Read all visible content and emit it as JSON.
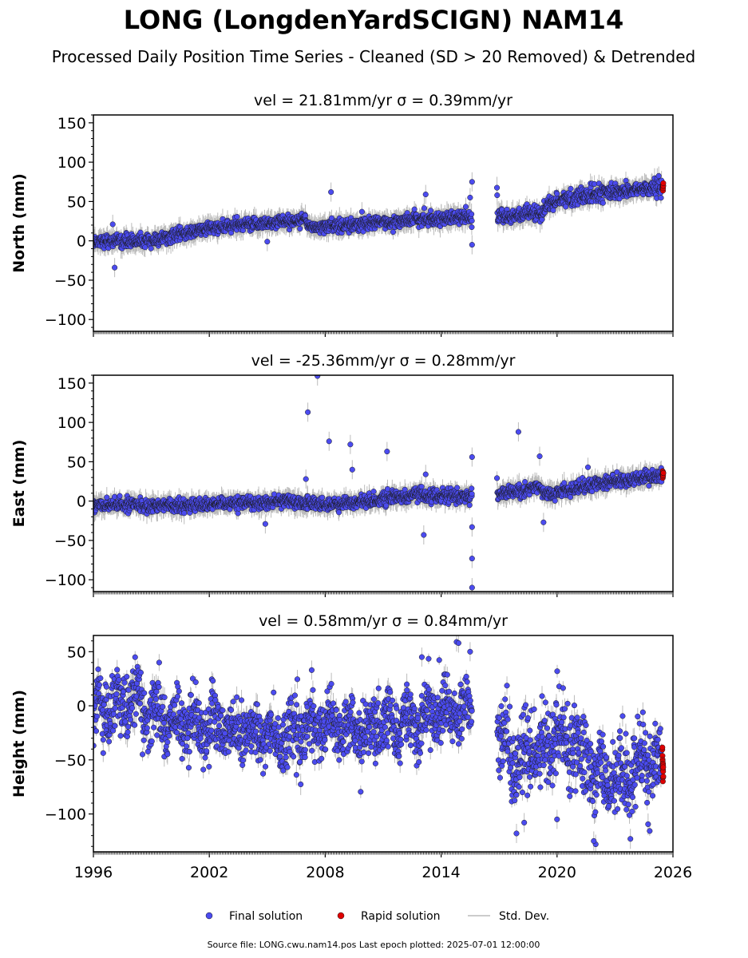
{
  "title": "LONG (LongdenYardSCIGN) NAM14",
  "subtitle": "Processed Daily Position Time Series - Cleaned (SD > 20 Removed) & Detrended",
  "footer": "Source file: LONG.cwu.nam14.pos  Last epoch plotted: 2025-07-01 12:00:00",
  "colors": {
    "final": "#4b4bef",
    "rapid": "#e00000",
    "stddev": "#bbbbbb",
    "marker_edge": "#1a1a1a"
  },
  "legend": [
    {
      "label": "Final solution",
      "marker": "circle",
      "color": "#4b4bef"
    },
    {
      "label": "Rapid solution",
      "marker": "circle",
      "color": "#e00000"
    },
    {
      "label": "Std. Dev.",
      "marker": "line",
      "color": "#bbbbbb"
    }
  ],
  "chart_data": [
    {
      "type": "scatter",
      "title": "vel = 21.81mm/yr   σ = 0.39mm/yr",
      "ylabel": "North (mm)",
      "xlim": [
        1996,
        2026
      ],
      "ylim": [
        -115,
        160
      ],
      "yticks": [
        -100,
        -50,
        0,
        50,
        100,
        150
      ],
      "xticks": [
        1996,
        2002,
        2008,
        2014,
        2020,
        2026
      ],
      "xtick_labels_visible": false,
      "series": [
        {
          "name": "Final solution",
          "segments": [
            {
              "x": [
                1996.0,
                1999.0,
                2002.0,
                2005.0,
                2007.0,
                2007.05,
                2010.0,
                2013.0,
                2015.6
              ],
              "y": [
                0,
                0,
                16,
                23,
                27,
                18,
                21,
                28,
                30
              ],
              "scatter": 4
            },
            {
              "x": [
                2016.9,
                2018.0,
                2019.2,
                2019.5,
                2022.0,
                2025.4
              ],
              "y": [
                30,
                33,
                33,
                48,
                60,
                68
              ],
              "scatter": 5
            }
          ]
        },
        {
          "name": "Rapid solution",
          "segments": [
            {
              "x": [
                2025.45,
                2025.5
              ],
              "y": [
                68,
                70
              ],
              "scatter": 2
            }
          ]
        }
      ],
      "outliers": {
        "x": [
          1997.1,
          2005.0,
          2008.3,
          2013.2,
          2009.9,
          2016.9,
          1997.0,
          2015.6,
          2015.6,
          2015.5
        ],
        "y": [
          -34,
          -1,
          62,
          59,
          37,
          58,
          21,
          75,
          -5,
          55
        ]
      }
    },
    {
      "type": "scatter",
      "title": "vel = -25.36mm/yr   σ = 0.28mm/yr",
      "ylabel": "East (mm)",
      "xlim": [
        1996,
        2026
      ],
      "ylim": [
        -115,
        160
      ],
      "yticks": [
        -100,
        -50,
        0,
        50,
        100,
        150
      ],
      "xticks": [
        1996,
        2002,
        2008,
        2014,
        2020,
        2026
      ],
      "xtick_labels_visible": false,
      "series": [
        {
          "name": "Final solution",
          "segments": [
            {
              "x": [
                1996.0,
                2002.0,
                2006.0,
                2008.0,
                2010.0,
                2013.0,
                2015.6
              ],
              "y": [
                -5,
                -5,
                0,
                -5,
                0,
                8,
                5
              ],
              "scatter": 4
            },
            {
              "x": [
                2016.9,
                2018.0,
                2019.0,
                2019.4,
                2022.0,
                2025.4
              ],
              "y": [
                10,
                12,
                20,
                8,
                22,
                32
              ],
              "scatter": 4
            }
          ]
        },
        {
          "name": "Rapid solution",
          "segments": [
            {
              "x": [
                2025.45,
                2025.5
              ],
              "y": [
                33,
                35
              ],
              "scatter": 2
            }
          ]
        }
      ],
      "outliers": {
        "x": [
          2007.1,
          2007.6,
          2008.2,
          2009.3,
          2009.4,
          2011.2,
          2007.0,
          2004.9,
          2015.6,
          2015.6,
          2015.6,
          2015.6,
          2013.2,
          2018.0,
          2019.1,
          2019.3,
          2021.6,
          2013.1
        ],
        "y": [
          113,
          159,
          76,
          72,
          40,
          63,
          28,
          -29,
          -110,
          -73,
          56,
          -33,
          34,
          88,
          57,
          -27,
          43,
          -43
        ]
      }
    },
    {
      "type": "scatter",
      "title": "vel = 0.58mm/yr   σ = 0.84mm/yr",
      "ylabel": "Height (mm)",
      "xlim": [
        1996,
        2026
      ],
      "ylim": [
        -135,
        65
      ],
      "yticks": [
        -100,
        -50,
        0,
        50
      ],
      "xticks": [
        1996,
        2002,
        2008,
        2014,
        2020,
        2026
      ],
      "xtick_labels": [
        "1996",
        "2002",
        "2008",
        "2014",
        "2020",
        "2026"
      ],
      "xtick_labels_visible": true,
      "series": [
        {
          "name": "Final solution",
          "segments": [
            {
              "x": [
                1996.0,
                1998.0,
                2000.0,
                2003.0,
                2006.0,
                2008.0,
                2010.0,
                2012.0,
                2014.0,
                2015.6
              ],
              "y": [
                -5,
                5,
                -15,
                -20,
                -30,
                -15,
                -25,
                -15,
                -5,
                0
              ],
              "scatter": 14,
              "wave": 15
            },
            {
              "x": [
                2016.9,
                2018.0,
                2019.3,
                2020.0,
                2021.0,
                2022.5,
                2025.4
              ],
              "y": [
                -25,
                -50,
                -40,
                -20,
                -40,
                -70,
                -55
              ],
              "scatter": 18,
              "wave": 15
            }
          ]
        },
        {
          "name": "Rapid solution",
          "segments": [
            {
              "x": [
                2025.45,
                2025.5
              ],
              "y": [
                -45,
                -60
              ],
              "scatter": 6
            }
          ]
        }
      ],
      "outliers": {
        "x": [
          2013.0,
          2014.8,
          2014.9,
          2015.5,
          2017.9,
          2018.3,
          2020.0,
          2022.0,
          2021.9,
          2007.3
        ],
        "y": [
          45,
          59,
          58,
          50,
          -118,
          -108,
          -105,
          -128,
          -125,
          33
        ]
      }
    }
  ]
}
